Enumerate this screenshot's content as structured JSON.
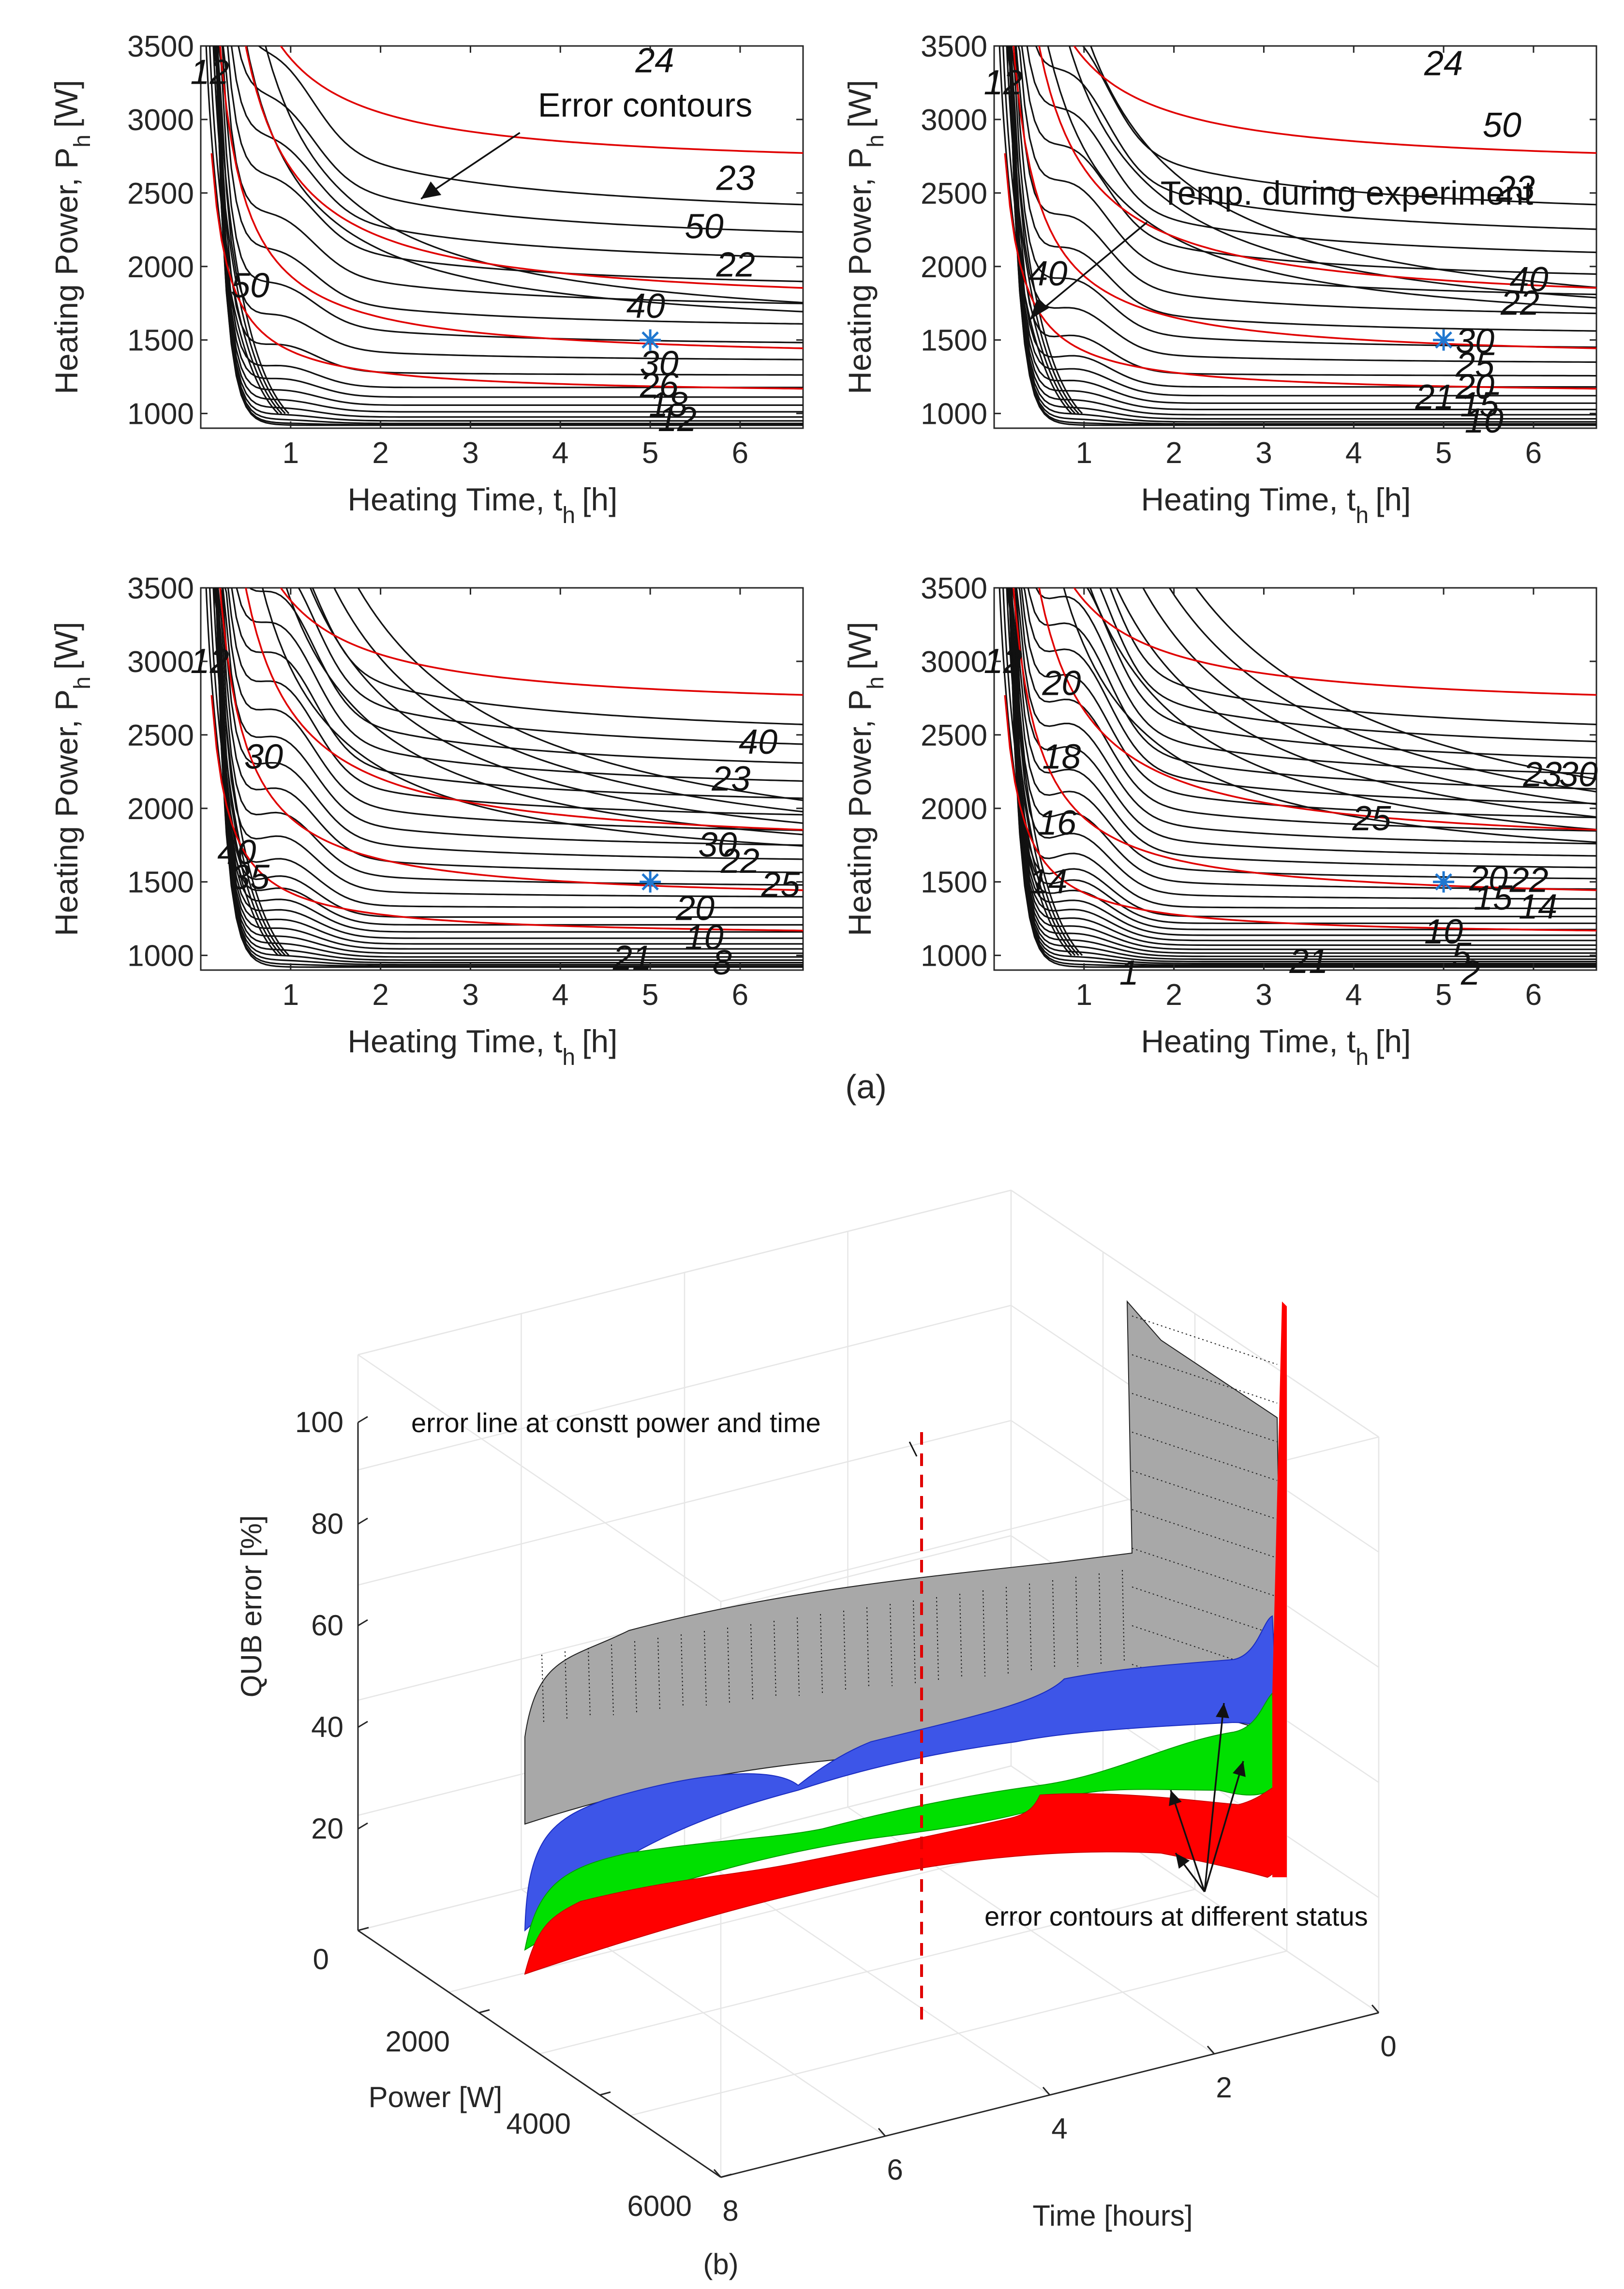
{
  "figure": {
    "panel_a_label": "(a)",
    "panel_b_label": "(b)"
  },
  "chart_data": [
    {
      "type": "contour",
      "panel": "a-1",
      "xlabel_main": "Heating Time, t",
      "xlabel_sub": "h",
      "xlabel_unit": "[h]",
      "ylabel_main": "Heating Power, P",
      "ylabel_sub": "h",
      "ylabel_unit": "[W]",
      "xlim": [
        0,
        6.7
      ],
      "ylim": [
        900,
        3500
      ],
      "xticks": [
        "1",
        "2",
        "3",
        "4",
        "5",
        "6"
      ],
      "yticks": [
        "1000",
        "1500",
        "2000",
        "2500",
        "3000",
        "3500"
      ],
      "black_labels": [
        {
          "text": "50",
          "x": 5.6,
          "y": 2270
        },
        {
          "text": "40",
          "x": 4.95,
          "y": 1730
        },
        {
          "text": "30",
          "x": 5.1,
          "y": 1340
        },
        {
          "text": "26",
          "x": 5.1,
          "y": 1190
        },
        {
          "text": "18",
          "x": 5.2,
          "y": 1060
        },
        {
          "text": "12",
          "x": 5.3,
          "y": 960
        },
        {
          "text": "50",
          "x": 0.55,
          "y": 1870
        },
        {
          "text": "12",
          "x": 0.1,
          "y": 3320
        }
      ],
      "red_labels": [
        {
          "text": "24",
          "x": 5.05,
          "y": 3400
        },
        {
          "text": "23",
          "x": 5.95,
          "y": 2600
        },
        {
          "text": "22",
          "x": 5.95,
          "y": 2010
        }
      ],
      "annotation": "Error contours",
      "marker": {
        "x": 5.0,
        "y": 1500
      }
    },
    {
      "type": "contour",
      "panel": "a-2",
      "xlabel_main": "Heating Time, t",
      "xlabel_sub": "h",
      "xlabel_unit": "[h]",
      "ylabel_main": "Heating Power, P",
      "ylabel_sub": "h",
      "ylabel_unit": "[W]",
      "xlim": [
        0,
        6.7
      ],
      "ylim": [
        900,
        3500
      ],
      "xticks": [
        "1",
        "2",
        "3",
        "4",
        "5",
        "6"
      ],
      "yticks": [
        "1000",
        "1500",
        "2000",
        "2500",
        "3000",
        "3500"
      ],
      "black_labels": [
        {
          "text": "50",
          "x": 5.65,
          "y": 2960
        },
        {
          "text": "40",
          "x": 5.95,
          "y": 1910
        },
        {
          "text": "30",
          "x": 5.35,
          "y": 1490
        },
        {
          "text": "25",
          "x": 5.35,
          "y": 1330
        },
        {
          "text": "20",
          "x": 5.35,
          "y": 1180
        },
        {
          "text": "15",
          "x": 5.4,
          "y": 1060
        },
        {
          "text": "10",
          "x": 5.45,
          "y": 950
        },
        {
          "text": "40",
          "x": 0.6,
          "y": 1950
        },
        {
          "text": "12",
          "x": 0.1,
          "y": 3250
        }
      ],
      "red_labels": [
        {
          "text": "24",
          "x": 5.0,
          "y": 3380
        },
        {
          "text": "23",
          "x": 5.8,
          "y": 2530
        },
        {
          "text": "22",
          "x": 5.85,
          "y": 1750
        },
        {
          "text": "21",
          "x": 4.9,
          "y": 1110
        }
      ],
      "annotation": "Temp. during experiment",
      "marker": {
        "x": 5.0,
        "y": 1500
      }
    },
    {
      "type": "contour",
      "panel": "a-3",
      "xlabel_main": "Heating Time, t",
      "xlabel_sub": "h",
      "xlabel_unit": "[h]",
      "ylabel_main": "Heating Power, P",
      "ylabel_sub": "h",
      "ylabel_unit": "[W]",
      "xlim": [
        0,
        6.7
      ],
      "ylim": [
        900,
        3500
      ],
      "xticks": [
        "1",
        "2",
        "3",
        "4",
        "5",
        "6"
      ],
      "yticks": [
        "1000",
        "1500",
        "2000",
        "2500",
        "3000",
        "3500"
      ],
      "black_labels": [
        {
          "text": "40",
          "x": 6.2,
          "y": 2450
        },
        {
          "text": "30",
          "x": 5.75,
          "y": 1750
        },
        {
          "text": "25",
          "x": 6.45,
          "y": 1480
        },
        {
          "text": "20",
          "x": 5.5,
          "y": 1320
        },
        {
          "text": "10",
          "x": 5.6,
          "y": 1120
        },
        {
          "text": "8",
          "x": 5.8,
          "y": 950
        },
        {
          "text": "30",
          "x": 0.7,
          "y": 2350
        },
        {
          "text": "40",
          "x": 0.4,
          "y": 1700
        },
        {
          "text": "35",
          "x": 0.55,
          "y": 1530
        },
        {
          "text": "12",
          "x": 0.1,
          "y": 3000
        }
      ],
      "red_labels": [
        {
          "text": "23",
          "x": 5.9,
          "y": 2200
        },
        {
          "text": "22",
          "x": 6.0,
          "y": 1640
        },
        {
          "text": "21",
          "x": 4.8,
          "y": 980
        }
      ],
      "marker": {
        "x": 5.0,
        "y": 1500
      }
    },
    {
      "type": "contour",
      "panel": "a-4",
      "xlabel_main": "Heating Time, t",
      "xlabel_sub": "h",
      "xlabel_unit": "[h]",
      "ylabel_main": "Heating Power, P",
      "ylabel_sub": "h",
      "ylabel_unit": "[W]",
      "xlim": [
        0,
        6.7
      ],
      "ylim": [
        900,
        3500
      ],
      "xticks": [
        "1",
        "2",
        "3",
        "4",
        "5",
        "6"
      ],
      "yticks": [
        "1000",
        "1500",
        "2000",
        "2500",
        "3000",
        "3500"
      ],
      "black_labels": [
        {
          "text": "30",
          "x": 6.5,
          "y": 2230
        },
        {
          "text": "25",
          "x": 4.2,
          "y": 1930
        },
        {
          "text": "20",
          "x": 5.5,
          "y": 1520
        },
        {
          "text": "15",
          "x": 5.55,
          "y": 1390
        },
        {
          "text": "14",
          "x": 6.05,
          "y": 1330
        },
        {
          "text": "10",
          "x": 5.0,
          "y": 1160
        },
        {
          "text": "5",
          "x": 5.2,
          "y": 1000
        },
        {
          "text": "2",
          "x": 5.3,
          "y": 880
        },
        {
          "text": "1",
          "x": 1.5,
          "y": 880
        },
        {
          "text": "20",
          "x": 0.75,
          "y": 2850
        },
        {
          "text": "18",
          "x": 0.75,
          "y": 2350
        },
        {
          "text": "16",
          "x": 0.7,
          "y": 1900
        },
        {
          "text": "14",
          "x": 0.6,
          "y": 1500
        },
        {
          "text": "12",
          "x": 0.1,
          "y": 3000
        }
      ],
      "red_labels": [
        {
          "text": "23",
          "x": 6.1,
          "y": 2230
        },
        {
          "text": "22",
          "x": 5.95,
          "y": 1510
        },
        {
          "text": "21",
          "x": 3.5,
          "y": 960
        }
      ],
      "marker": {
        "x": 5.0,
        "y": 1500
      }
    },
    {
      "type": "surface3d",
      "panel": "b",
      "zlabel": "QUB error [%]",
      "xlabel": "Power [W]",
      "ylabel": "Time [hours]",
      "zticks": [
        "20",
        "40",
        "60",
        "80",
        "100"
      ],
      "power_ticks": [
        "0",
        "2000",
        "4000",
        "6000"
      ],
      "time_ticks": [
        "8",
        "6",
        "4",
        "2",
        "0"
      ],
      "zlim": [
        0,
        100
      ],
      "power_lim": [
        0,
        6000
      ],
      "time_lim": [
        0,
        8
      ],
      "annotations": [
        "error line at constt power and time",
        "error contours at different status"
      ],
      "series": [
        {
          "name": "gray",
          "color": "#a8a8a8"
        },
        {
          "name": "blue",
          "color": "#3d55e8"
        },
        {
          "name": "green",
          "color": "#00e000"
        },
        {
          "name": "red",
          "color": "#ff0000"
        }
      ]
    }
  ]
}
